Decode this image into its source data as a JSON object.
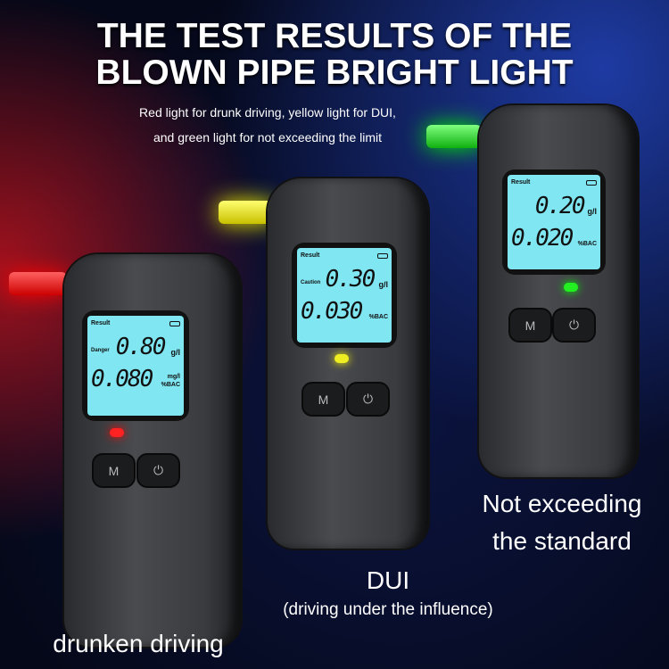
{
  "title": {
    "line1": "THE TEST RESULTS OF THE",
    "line2": "BLOWN PIPE BRIGHT LIGHT"
  },
  "subtitle": {
    "line1": "Red light for drunk driving, yellow light for DUI,",
    "line2": "and green light for not exceeding the limit"
  },
  "devices": [
    {
      "light_color": "#ff2020",
      "header": "Result",
      "level": "Danger",
      "value1": "0.80",
      "unit1": "g/l",
      "unit1b": "mg/l",
      "value2": "0.080",
      "unit2": "%BAC",
      "btn_m": "M",
      "power_icon": "power-icon",
      "caption": "drunken driving"
    },
    {
      "light_color": "#f5e60a",
      "header": "Result",
      "level": "Caution",
      "value1": "0.30",
      "unit1": "g/l",
      "value2": "0.030",
      "unit2": "%BAC",
      "btn_m": "M",
      "power_icon": "power-icon",
      "caption": "DUI",
      "caption2": "(driving under the influence)"
    },
    {
      "light_color": "#22e02a",
      "header": "Result",
      "value1": "0.20",
      "unit1": "g/l",
      "value2": "0.020",
      "unit2": "%BAC",
      "btn_m": "M",
      "power_icon": "power-icon",
      "caption": "Not exceeding",
      "caption2": "the standard"
    }
  ]
}
